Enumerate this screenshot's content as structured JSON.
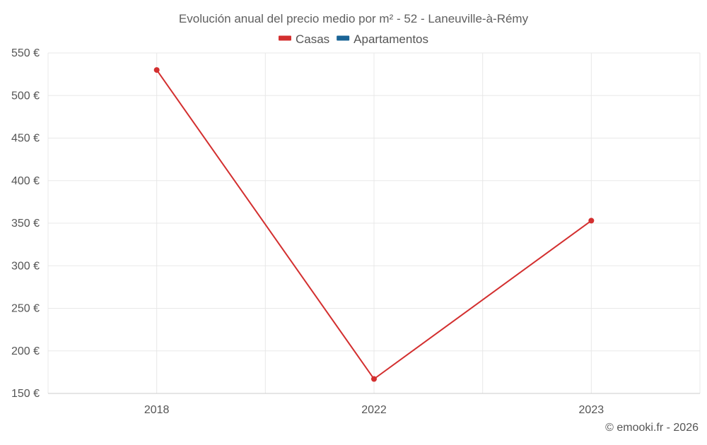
{
  "chart_data": {
    "type": "line",
    "title": "Evolución anual del precio medio por m² - 52 - Laneuville-à-Rémy",
    "categories": [
      "2018",
      "2022",
      "2023"
    ],
    "series": [
      {
        "name": "Casas",
        "color": "#d32f2f",
        "values": [
          530,
          167,
          353
        ]
      },
      {
        "name": "Apartamentos",
        "color": "#1a6496",
        "values": [
          null,
          null,
          null
        ]
      }
    ],
    "y_ticks": [
      150,
      200,
      250,
      300,
      350,
      400,
      450,
      500,
      550
    ],
    "y_tick_labels": [
      "150 €",
      "200 €",
      "250 €",
      "300 €",
      "350 €",
      "400 €",
      "450 €",
      "500 €",
      "550 €"
    ],
    "ylim": [
      150,
      550
    ],
    "xlabel": "",
    "ylabel": "",
    "grid": true,
    "legend_position": "top-center"
  },
  "credit": "© emooki.fr - 2026"
}
